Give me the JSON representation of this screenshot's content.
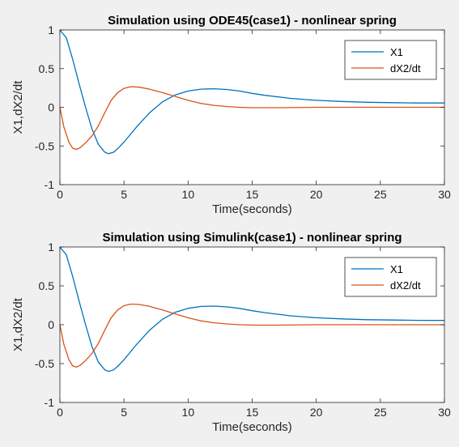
{
  "chart_data": [
    {
      "type": "line",
      "title": "Simulation using ODE45(case1) - nonlinear spring",
      "xlabel": "Time(seconds)",
      "ylabel": "X1,dX2/dt",
      "xlim": [
        0,
        30
      ],
      "ylim": [
        -1,
        1
      ],
      "xticks": [
        0,
        5,
        10,
        15,
        20,
        25,
        30
      ],
      "yticks": [
        -1,
        -0.5,
        0,
        0.5,
        1
      ],
      "grid": false,
      "legend_position": "top-right",
      "series": [
        {
          "name": "X1",
          "color": "#0072bd",
          "x": [
            0,
            0.5,
            1,
            1.5,
            2,
            2.5,
            3,
            3.5,
            3.8,
            4.2,
            4.6,
            5,
            6,
            7,
            8,
            9,
            10,
            11,
            12,
            13,
            14,
            15,
            16,
            18,
            20,
            22,
            24,
            26,
            28,
            30
          ],
          "y": [
            1,
            0.9,
            0.62,
            0.3,
            0.0,
            -0.28,
            -0.48,
            -0.58,
            -0.6,
            -0.58,
            -0.52,
            -0.45,
            -0.25,
            -0.07,
            0.07,
            0.16,
            0.21,
            0.235,
            0.24,
            0.23,
            0.21,
            0.18,
            0.155,
            0.115,
            0.09,
            0.075,
            0.065,
            0.06,
            0.056,
            0.055
          ]
        },
        {
          "name": "dX2/dt",
          "color": "#d95319",
          "x": [
            0,
            0.3,
            0.7,
            1.0,
            1.3,
            1.6,
            2.0,
            2.5,
            3.0,
            3.5,
            4.0,
            4.5,
            5.0,
            5.5,
            5.8,
            6.2,
            7,
            8,
            9,
            10,
            11,
            12,
            13,
            14,
            15,
            17,
            20,
            25,
            30
          ],
          "y": [
            0,
            -0.25,
            -0.45,
            -0.53,
            -0.545,
            -0.52,
            -0.46,
            -0.37,
            -0.24,
            -0.07,
            0.09,
            0.19,
            0.245,
            0.265,
            0.265,
            0.26,
            0.235,
            0.19,
            0.14,
            0.09,
            0.05,
            0.025,
            0.01,
            0.0,
            -0.005,
            -0.005,
            0.0,
            0.0,
            0.0
          ]
        }
      ]
    },
    {
      "type": "line",
      "title": "Simulation using Simulink(case1) - nonlinear spring",
      "xlabel": "Time(seconds)",
      "ylabel": "X1,dX2/dt",
      "xlim": [
        0,
        30
      ],
      "ylim": [
        -1,
        1
      ],
      "xticks": [
        0,
        5,
        10,
        15,
        20,
        25,
        30
      ],
      "yticks": [
        -1,
        -0.5,
        0,
        0.5,
        1
      ],
      "grid": false,
      "legend_position": "top-right",
      "series": [
        {
          "name": "X1",
          "color": "#0072bd",
          "x": [
            0,
            0.5,
            1,
            1.5,
            2,
            2.5,
            3,
            3.5,
            3.8,
            4.2,
            4.6,
            5,
            6,
            7,
            8,
            9,
            10,
            11,
            12,
            13,
            14,
            15,
            16,
            18,
            20,
            22,
            24,
            26,
            28,
            30
          ],
          "y": [
            1,
            0.9,
            0.62,
            0.3,
            0.0,
            -0.28,
            -0.48,
            -0.58,
            -0.6,
            -0.58,
            -0.52,
            -0.45,
            -0.25,
            -0.07,
            0.07,
            0.16,
            0.21,
            0.235,
            0.24,
            0.23,
            0.21,
            0.18,
            0.155,
            0.115,
            0.09,
            0.075,
            0.065,
            0.06,
            0.056,
            0.055
          ]
        },
        {
          "name": "dX2/dt",
          "color": "#d95319",
          "x": [
            0,
            0.3,
            0.7,
            1.0,
            1.3,
            1.6,
            2.0,
            2.5,
            3.0,
            3.5,
            4.0,
            4.5,
            5.0,
            5.5,
            5.8,
            6.2,
            7,
            8,
            9,
            10,
            11,
            12,
            13,
            14,
            15,
            17,
            20,
            25,
            30
          ],
          "y": [
            0,
            -0.25,
            -0.45,
            -0.53,
            -0.545,
            -0.52,
            -0.46,
            -0.37,
            -0.24,
            -0.07,
            0.09,
            0.19,
            0.245,
            0.265,
            0.265,
            0.26,
            0.235,
            0.19,
            0.14,
            0.09,
            0.05,
            0.025,
            0.01,
            0.0,
            -0.005,
            -0.005,
            0.0,
            0.0,
            0.0
          ]
        }
      ]
    }
  ]
}
